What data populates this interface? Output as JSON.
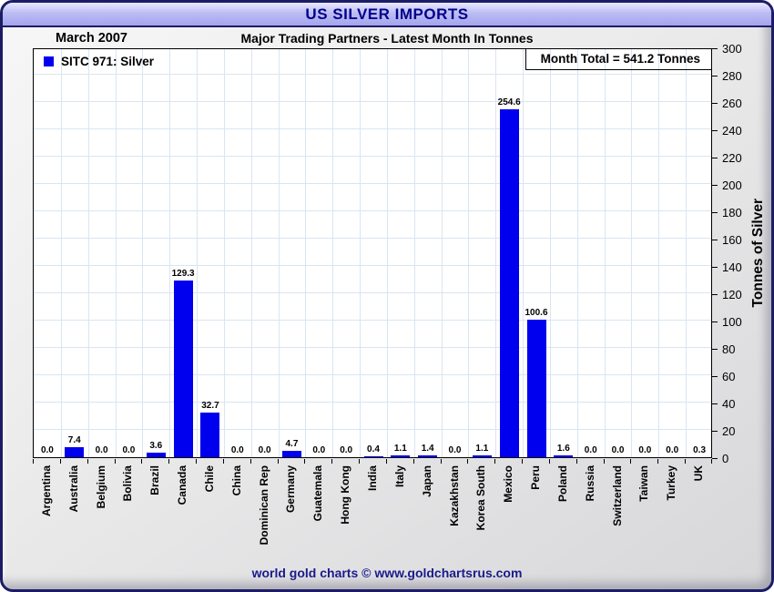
{
  "window": {
    "title": "US SILVER IMPORTS"
  },
  "header": {
    "period": "March 2007",
    "subtitle": "Major Trading Partners - Latest Month In Tonnes"
  },
  "legend": {
    "label": "SITC 971: Silver"
  },
  "annotation": {
    "month_total_label": "Month Total = 541.2 Tonnes"
  },
  "footer": {
    "credit": "world gold charts © www.goldchartsrus.com"
  },
  "colors": {
    "bar": "#0000EE",
    "title_text": "#00008B",
    "titlebar_top": "#E9E9FF",
    "titlebar_bottom": "#A4A4EE",
    "grid": "#D9E5F3",
    "frame_border": "#1C1C66",
    "footer_text": "#1A1A8C"
  },
  "chart_data": {
    "type": "bar",
    "title": "US SILVER IMPORTS",
    "subtitle": "Major Trading Partners - Latest Month In Tonnes",
    "period": "March 2007",
    "series_name": "SITC 971: Silver",
    "month_total_tonnes": 541.2,
    "categories": [
      "Argentina",
      "Australia",
      "Belgium",
      "Bolivia",
      "Brazil",
      "Canada",
      "Chile",
      "China",
      "Dominican Rep",
      "Germany",
      "Guatemala",
      "Hong Kong",
      "India",
      "Italy",
      "Japan",
      "Kazakhstan",
      "Korea South",
      "Mexico",
      "Peru",
      "Poland",
      "Russia",
      "Switzerland",
      "Taiwan",
      "Turkey",
      "UK"
    ],
    "values": [
      0.0,
      7.4,
      0.0,
      0.0,
      3.6,
      129.3,
      32.7,
      0.0,
      0.0,
      4.7,
      0.0,
      0.0,
      0.4,
      1.1,
      1.4,
      0.0,
      1.1,
      254.6,
      100.6,
      1.6,
      0.0,
      0.0,
      0.0,
      0.0,
      0.3
    ],
    "xlabel": "",
    "ylabel": "Tonnes of Silver",
    "ylim": [
      0,
      300
    ],
    "ytick_step": 20,
    "grid": true,
    "legend_position": "top-left",
    "value_labels": true
  }
}
